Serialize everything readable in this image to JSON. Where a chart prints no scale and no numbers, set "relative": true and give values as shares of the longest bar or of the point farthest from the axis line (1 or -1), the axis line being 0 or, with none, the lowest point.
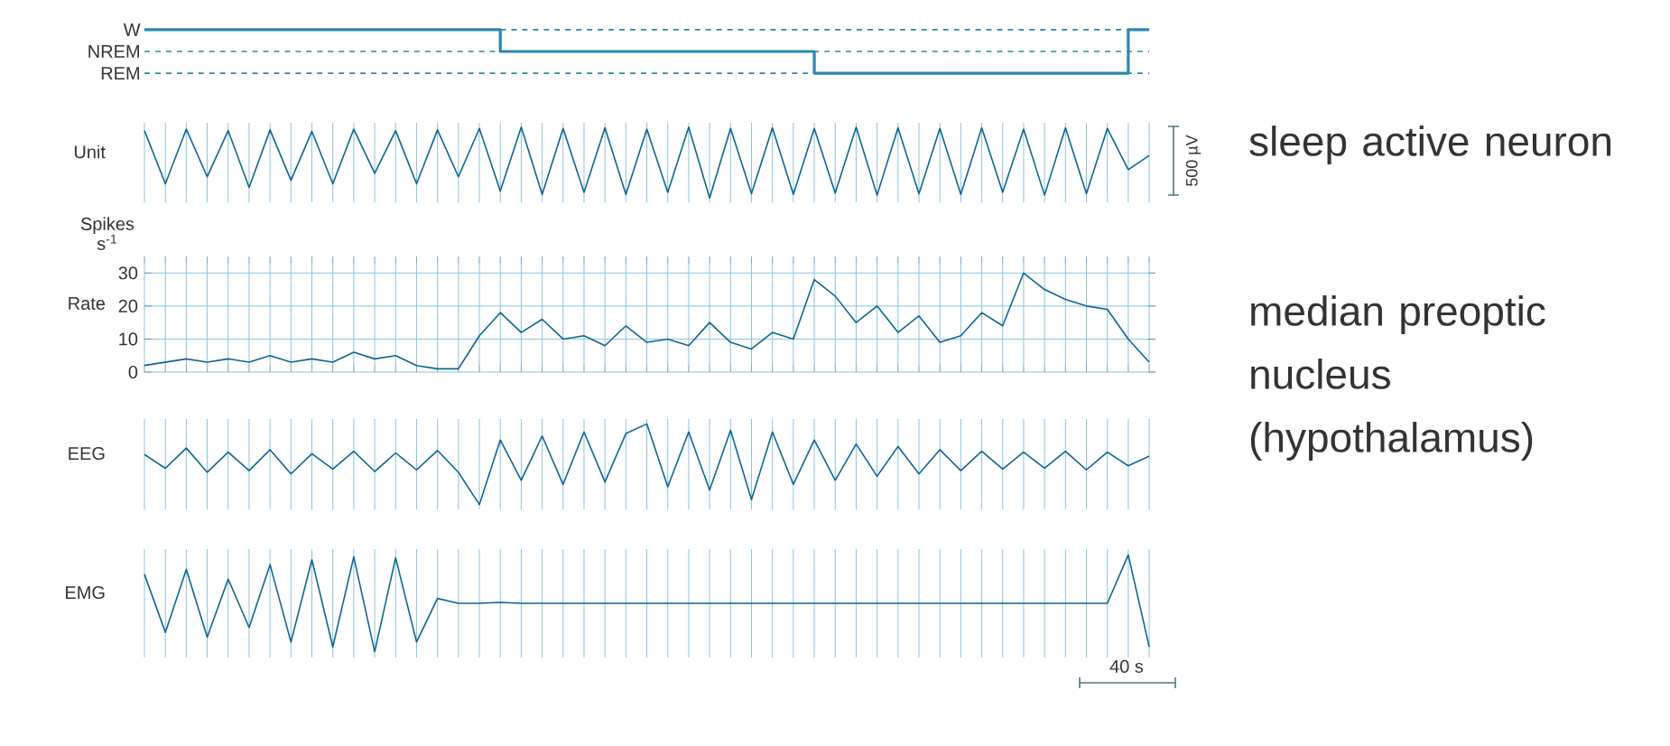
{
  "chart_data": [
    {
      "type": "step",
      "categories": [
        null,
        null,
        null,
        null,
        null,
        null,
        null,
        null,
        null,
        null,
        null,
        null,
        null,
        null,
        null,
        null,
        null,
        null,
        null,
        null,
        null,
        null,
        null,
        null,
        null,
        null,
        null,
        null,
        null,
        null,
        null,
        null,
        null,
        null,
        null,
        null,
        null,
        null,
        null,
        null,
        null,
        null,
        null,
        null,
        null,
        null,
        null,
        null,
        null
      ],
      "values": [
        1,
        1,
        1,
        1,
        1,
        1,
        1,
        1,
        1,
        1,
        1,
        1,
        1,
        1,
        1,
        1,
        1,
        0.5,
        0.5,
        0.5,
        0.5,
        0.5,
        0.5,
        0.5,
        0.5,
        0.5,
        0.5,
        0.5,
        0.5,
        0.5,
        0.5,
        0.5,
        0,
        0,
        0,
        0,
        0,
        0,
        0,
        0,
        0,
        0,
        0,
        0,
        0,
        0,
        0,
        1,
        1
      ],
      "color": "#2a86b0",
      "relative": true,
      "ref_lines": [
        {
          "axis": "y",
          "value": 1,
          "label": "W",
          "line_style": "dashed"
        },
        {
          "axis": "y",
          "value": 0.5,
          "label": "NREM",
          "line_style": "dashed"
        },
        {
          "axis": "y",
          "value": 0,
          "label": "REM",
          "line_style": "dashed"
        }
      ]
    },
    {
      "type": "line",
      "title": "Unit",
      "relative": true,
      "categories": [
        null,
        null,
        null,
        null,
        null,
        null,
        null,
        null,
        null,
        null,
        null,
        null,
        null,
        null,
        null,
        null,
        null,
        null,
        null,
        null,
        null,
        null,
        null,
        null,
        null,
        null,
        null,
        null,
        null,
        null,
        null,
        null,
        null,
        null,
        null,
        null,
        null,
        null,
        null,
        null,
        null,
        null,
        null,
        null,
        null,
        null,
        null,
        null,
        null
      ],
      "values": [
        0.95,
        0.2,
        0.97,
        0.3,
        0.95,
        0.15,
        0.96,
        0.25,
        0.94,
        0.2,
        0.97,
        0.35,
        0.95,
        0.2,
        0.96,
        0.3,
        0.98,
        0.1,
        1,
        0.05,
        0.98,
        0.08,
        0.99,
        0.05,
        0.97,
        0.08,
        1,
        0,
        0.98,
        0.06,
        0.99,
        0.05,
        0.98,
        0.07,
        1,
        0.04,
        0.99,
        0.06,
        0.98,
        0.05,
        0.99,
        0.08,
        0.97,
        0.04,
        0.99,
        0.06,
        0.98,
        0.4,
        0.6
      ],
      "color": "#0f6590",
      "grid": "x",
      "annotations": [
        "500 µV",
        "sleep active neuron",
        "median preoptic nucleus (hypothalamus)"
      ]
    },
    {
      "type": "line",
      "title": "Rate",
      "ylabel": "Spikes s$^{-1}$",
      "categories": [
        null,
        null,
        null,
        null,
        null,
        null,
        null,
        null,
        null,
        null,
        null,
        null,
        null,
        null,
        null,
        null,
        null,
        null,
        null,
        null,
        null,
        null,
        null,
        null,
        null,
        null,
        null,
        null,
        null,
        null,
        null,
        null,
        null,
        null,
        null,
        null,
        null,
        null,
        null,
        null,
        null,
        null,
        null,
        null,
        null,
        null,
        null,
        null,
        null
      ],
      "values": [
        2,
        3,
        4,
        3,
        4,
        3,
        5,
        3,
        4,
        3,
        6,
        4,
        5,
        2,
        1,
        1,
        11,
        18,
        12,
        16,
        10,
        11,
        8,
        14,
        9,
        10,
        8,
        15,
        9,
        7,
        12,
        10,
        28,
        23,
        15,
        20,
        12,
        17,
        9,
        11,
        18,
        14,
        30,
        25,
        22,
        20,
        19,
        10,
        3
      ],
      "color": "#0f6590",
      "ylim": [
        0,
        35
      ],
      "yticks": [
        0,
        10,
        20,
        30
      ],
      "grid": true
    },
    {
      "type": "line",
      "title": "EEG",
      "relative": true,
      "categories": [
        null,
        null,
        null,
        null,
        null,
        null,
        null,
        null,
        null,
        null,
        null,
        null,
        null,
        null,
        null,
        null,
        null,
        null,
        null,
        null,
        null,
        null,
        null,
        null,
        null,
        null,
        null,
        null,
        null,
        null,
        null,
        null,
        null,
        null,
        null,
        null,
        null,
        null,
        null,
        null,
        null,
        null,
        null,
        null,
        null,
        null,
        null,
        null,
        null
      ],
      "values": [
        0.62,
        0.45,
        0.7,
        0.4,
        0.65,
        0.42,
        0.68,
        0.38,
        0.63,
        0.44,
        0.66,
        0.41,
        0.64,
        0.43,
        0.67,
        0.4,
        0,
        0.8,
        0.3,
        0.85,
        0.25,
        0.9,
        0.28,
        0.88,
        1,
        0.22,
        0.9,
        0.18,
        0.92,
        0.06,
        0.9,
        0.25,
        0.8,
        0.3,
        0.75,
        0.35,
        0.72,
        0.38,
        0.68,
        0.42,
        0.66,
        0.44,
        0.65,
        0.45,
        0.66,
        0.43,
        0.65,
        0.48,
        0.6
      ],
      "color": "#0f6590",
      "grid": "x"
    },
    {
      "type": "line",
      "title": "EMG",
      "relative": true,
      "categories": [
        null,
        null,
        null,
        null,
        null,
        null,
        null,
        null,
        null,
        null,
        null,
        null,
        null,
        null,
        null,
        null,
        null,
        null,
        null,
        null,
        null,
        null,
        null,
        null,
        null,
        null,
        null,
        null,
        null,
        null,
        null,
        null,
        null,
        null,
        null,
        null,
        null,
        null,
        null,
        null,
        null,
        null,
        null,
        null,
        null,
        null,
        null,
        null,
        null
      ],
      "values": [
        0.8,
        0.2,
        0.85,
        0.15,
        0.75,
        0.25,
        0.9,
        0.1,
        0.95,
        0.05,
        0.98,
        0,
        0.97,
        0.1,
        0.55,
        0.5,
        0.5,
        0.51,
        0.5,
        0.5,
        0.5,
        0.5,
        0.5,
        0.5,
        0.5,
        0.5,
        0.5,
        0.5,
        0.5,
        0.5,
        0.5,
        0.5,
        0.5,
        0.5,
        0.5,
        0.5,
        0.5,
        0.5,
        0.5,
        0.5,
        0.5,
        0.5,
        0.5,
        0.5,
        0.5,
        0.5,
        0.5,
        1,
        0.05
      ],
      "color": "#0f6590",
      "grid": "x",
      "annotations": [
        "40 s"
      ]
    }
  ]
}
